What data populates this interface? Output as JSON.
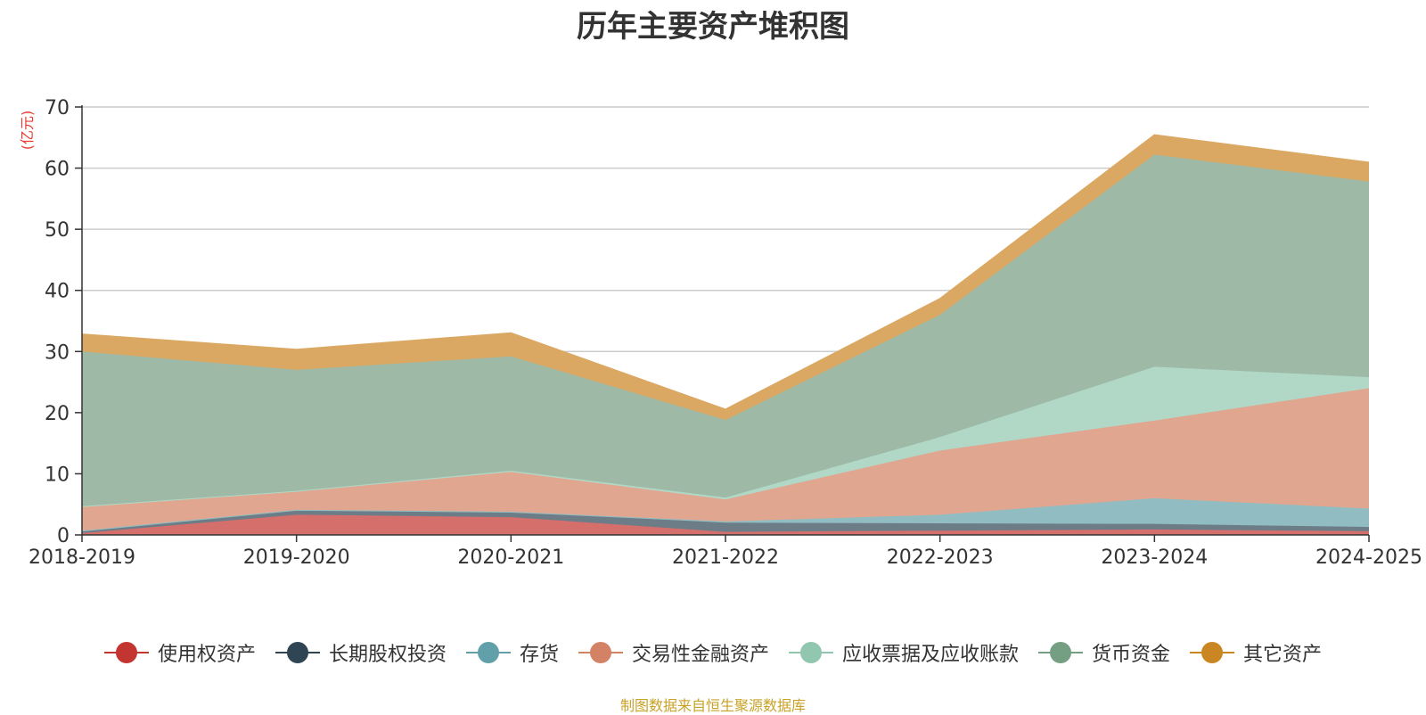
{
  "chart_data": {
    "type": "area",
    "stacked": true,
    "title": "历年主要资产堆积图",
    "unit_label": "(亿元)",
    "categories": [
      "2018-2019",
      "2019-2020",
      "2020-2021",
      "2021-2022",
      "2022-2023",
      "2023-2024",
      "2024-2025"
    ],
    "ylim": [
      0,
      70
    ],
    "yticks": [
      0,
      10,
      20,
      30,
      40,
      50,
      60,
      70
    ],
    "grid": true,
    "legend_position": "bottom",
    "series": [
      {
        "name": "使用权资产",
        "color": "#c23531",
        "fill": "#d56f6c",
        "values": [
          0.3,
          3.3,
          2.9,
          0.5,
          0.7,
          0.9,
          0.6
        ]
      },
      {
        "name": "长期股权投资",
        "color": "#2f4554",
        "fill": "#6d7d88",
        "values": [
          0.4,
          0.8,
          0.9,
          1.5,
          1.2,
          0.9,
          0.7
        ]
      },
      {
        "name": "存货",
        "color": "#61a0a8",
        "fill": "#91bdc2",
        "values": [
          0.0,
          0.0,
          0.0,
          0.2,
          1.4,
          4.2,
          3.0
        ]
      },
      {
        "name": "交易性金融资产",
        "color": "#d48265",
        "fill": "#e0a690",
        "values": [
          3.9,
          3.0,
          6.5,
          3.6,
          10.5,
          12.7,
          19.7
        ]
      },
      {
        "name": "应收票据及应收账款",
        "color": "#91c7ae",
        "fill": "#b1d8c6",
        "values": [
          0.1,
          0.1,
          0.2,
          0.3,
          2.2,
          8.8,
          1.8
        ]
      },
      {
        "name": "货币资金",
        "color": "#749f83",
        "fill": "#9ebaa7",
        "values": [
          25.3,
          19.8,
          18.7,
          12.7,
          20.0,
          34.7,
          32.0
        ]
      },
      {
        "name": "其它资产",
        "color": "#ca8622",
        "fill": "#daa862",
        "values": [
          2.8,
          3.3,
          3.8,
          1.7,
          2.6,
          3.2,
          3.1
        ]
      }
    ]
  },
  "source_note": "制图数据来自恒生聚源数据库"
}
